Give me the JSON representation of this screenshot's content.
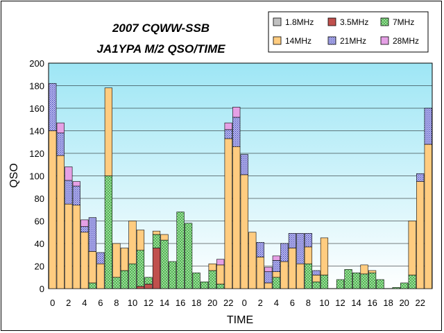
{
  "chart_data": {
    "type": "bar",
    "stacked": true,
    "title_lines": [
      "2007 CQWW-SSB",
      "JA1YPA M/2  QSO/TIME"
    ],
    "xlabel": "TIME",
    "ylabel": "QSO",
    "ylim": [
      0,
      200
    ],
    "y_ticks": [
      0,
      20,
      40,
      60,
      80,
      100,
      120,
      140,
      160,
      180,
      200
    ],
    "x_tick_labels": [
      "0",
      "2",
      "4",
      "6",
      "8",
      "10",
      "12",
      "14",
      "16",
      "18",
      "20",
      "22",
      "0",
      "2",
      "4",
      "6",
      "8",
      "10",
      "12",
      "14",
      "16",
      "18",
      "20",
      "22"
    ],
    "legend_position": "top-right",
    "grid": true,
    "series": [
      {
        "name": "1.8MHz",
        "color": "#c0c0c0",
        "pattern": "plain",
        "values": [
          0,
          0,
          0,
          0,
          0,
          0,
          0,
          0,
          0,
          0,
          0,
          0,
          0,
          0,
          0,
          0,
          0,
          0,
          0,
          0,
          0,
          0,
          0,
          0,
          0,
          0,
          0,
          0,
          0,
          0,
          0,
          0,
          0,
          0,
          0,
          0,
          0,
          0,
          0,
          0,
          0,
          0,
          0,
          0,
          0,
          0,
          0,
          0
        ]
      },
      {
        "name": "3.5MHz",
        "color": "#c0504d",
        "pattern": "plain",
        "values": [
          0,
          0,
          0,
          0,
          0,
          0,
          0,
          0,
          0,
          0,
          0,
          2,
          4,
          36,
          0,
          0,
          0,
          0,
          0,
          0,
          0,
          0,
          0,
          0,
          0,
          0,
          0,
          0,
          0,
          0,
          0,
          0,
          0,
          0,
          0,
          0,
          0,
          0,
          0,
          0,
          0,
          0,
          0,
          0,
          0,
          0,
          0,
          0
        ]
      },
      {
        "name": "7MHz",
        "color": "#7fd27f",
        "pattern": "cross",
        "values": [
          0,
          0,
          0,
          0,
          0,
          5,
          0,
          100,
          10,
          16,
          22,
          32,
          6,
          12,
          43,
          24,
          68,
          58,
          14,
          6,
          16,
          4,
          0,
          0,
          0,
          0,
          0,
          0,
          10,
          0,
          0,
          0,
          22,
          6,
          12,
          0,
          8,
          17,
          14,
          13,
          14,
          8,
          0,
          1,
          5,
          12,
          0,
          0
        ]
      },
      {
        "name": "14MHz",
        "color": "#ffcc80",
        "pattern": "plain",
        "values": [
          140,
          118,
          75,
          74,
          50,
          28,
          22,
          78,
          30,
          20,
          38,
          18,
          0,
          3,
          5,
          0,
          0,
          0,
          0,
          0,
          6,
          17,
          133,
          126,
          101,
          50,
          28,
          5,
          5,
          24,
          36,
          22,
          15,
          6,
          33,
          0,
          0,
          0,
          0,
          8,
          2,
          0,
          0,
          0,
          0,
          48,
          95,
          128
        ]
      },
      {
        "name": "21MHz",
        "color": "#a9a9ef",
        "pattern": "dots",
        "values": [
          42,
          20,
          21,
          17,
          5,
          30,
          10,
          0,
          0,
          0,
          0,
          0,
          0,
          0,
          0,
          0,
          0,
          0,
          0,
          0,
          0,
          0,
          8,
          26,
          18,
          0,
          13,
          10,
          10,
          16,
          13,
          27,
          12,
          4,
          0,
          0,
          0,
          0,
          0,
          0,
          0,
          0,
          0,
          0,
          0,
          0,
          7,
          32
        ]
      },
      {
        "name": "28MHz",
        "color": "#e5a0e5",
        "pattern": "plain",
        "values": [
          0,
          9,
          12,
          4,
          6,
          0,
          0,
          0,
          0,
          0,
          0,
          0,
          0,
          0,
          0,
          0,
          0,
          0,
          0,
          0,
          0,
          5,
          6,
          9,
          0,
          0,
          0,
          4,
          4,
          0,
          0,
          0,
          0,
          0,
          0,
          0,
          0,
          0,
          0,
          0,
          0,
          0,
          0,
          0,
          0,
          0,
          0,
          0
        ]
      }
    ]
  }
}
